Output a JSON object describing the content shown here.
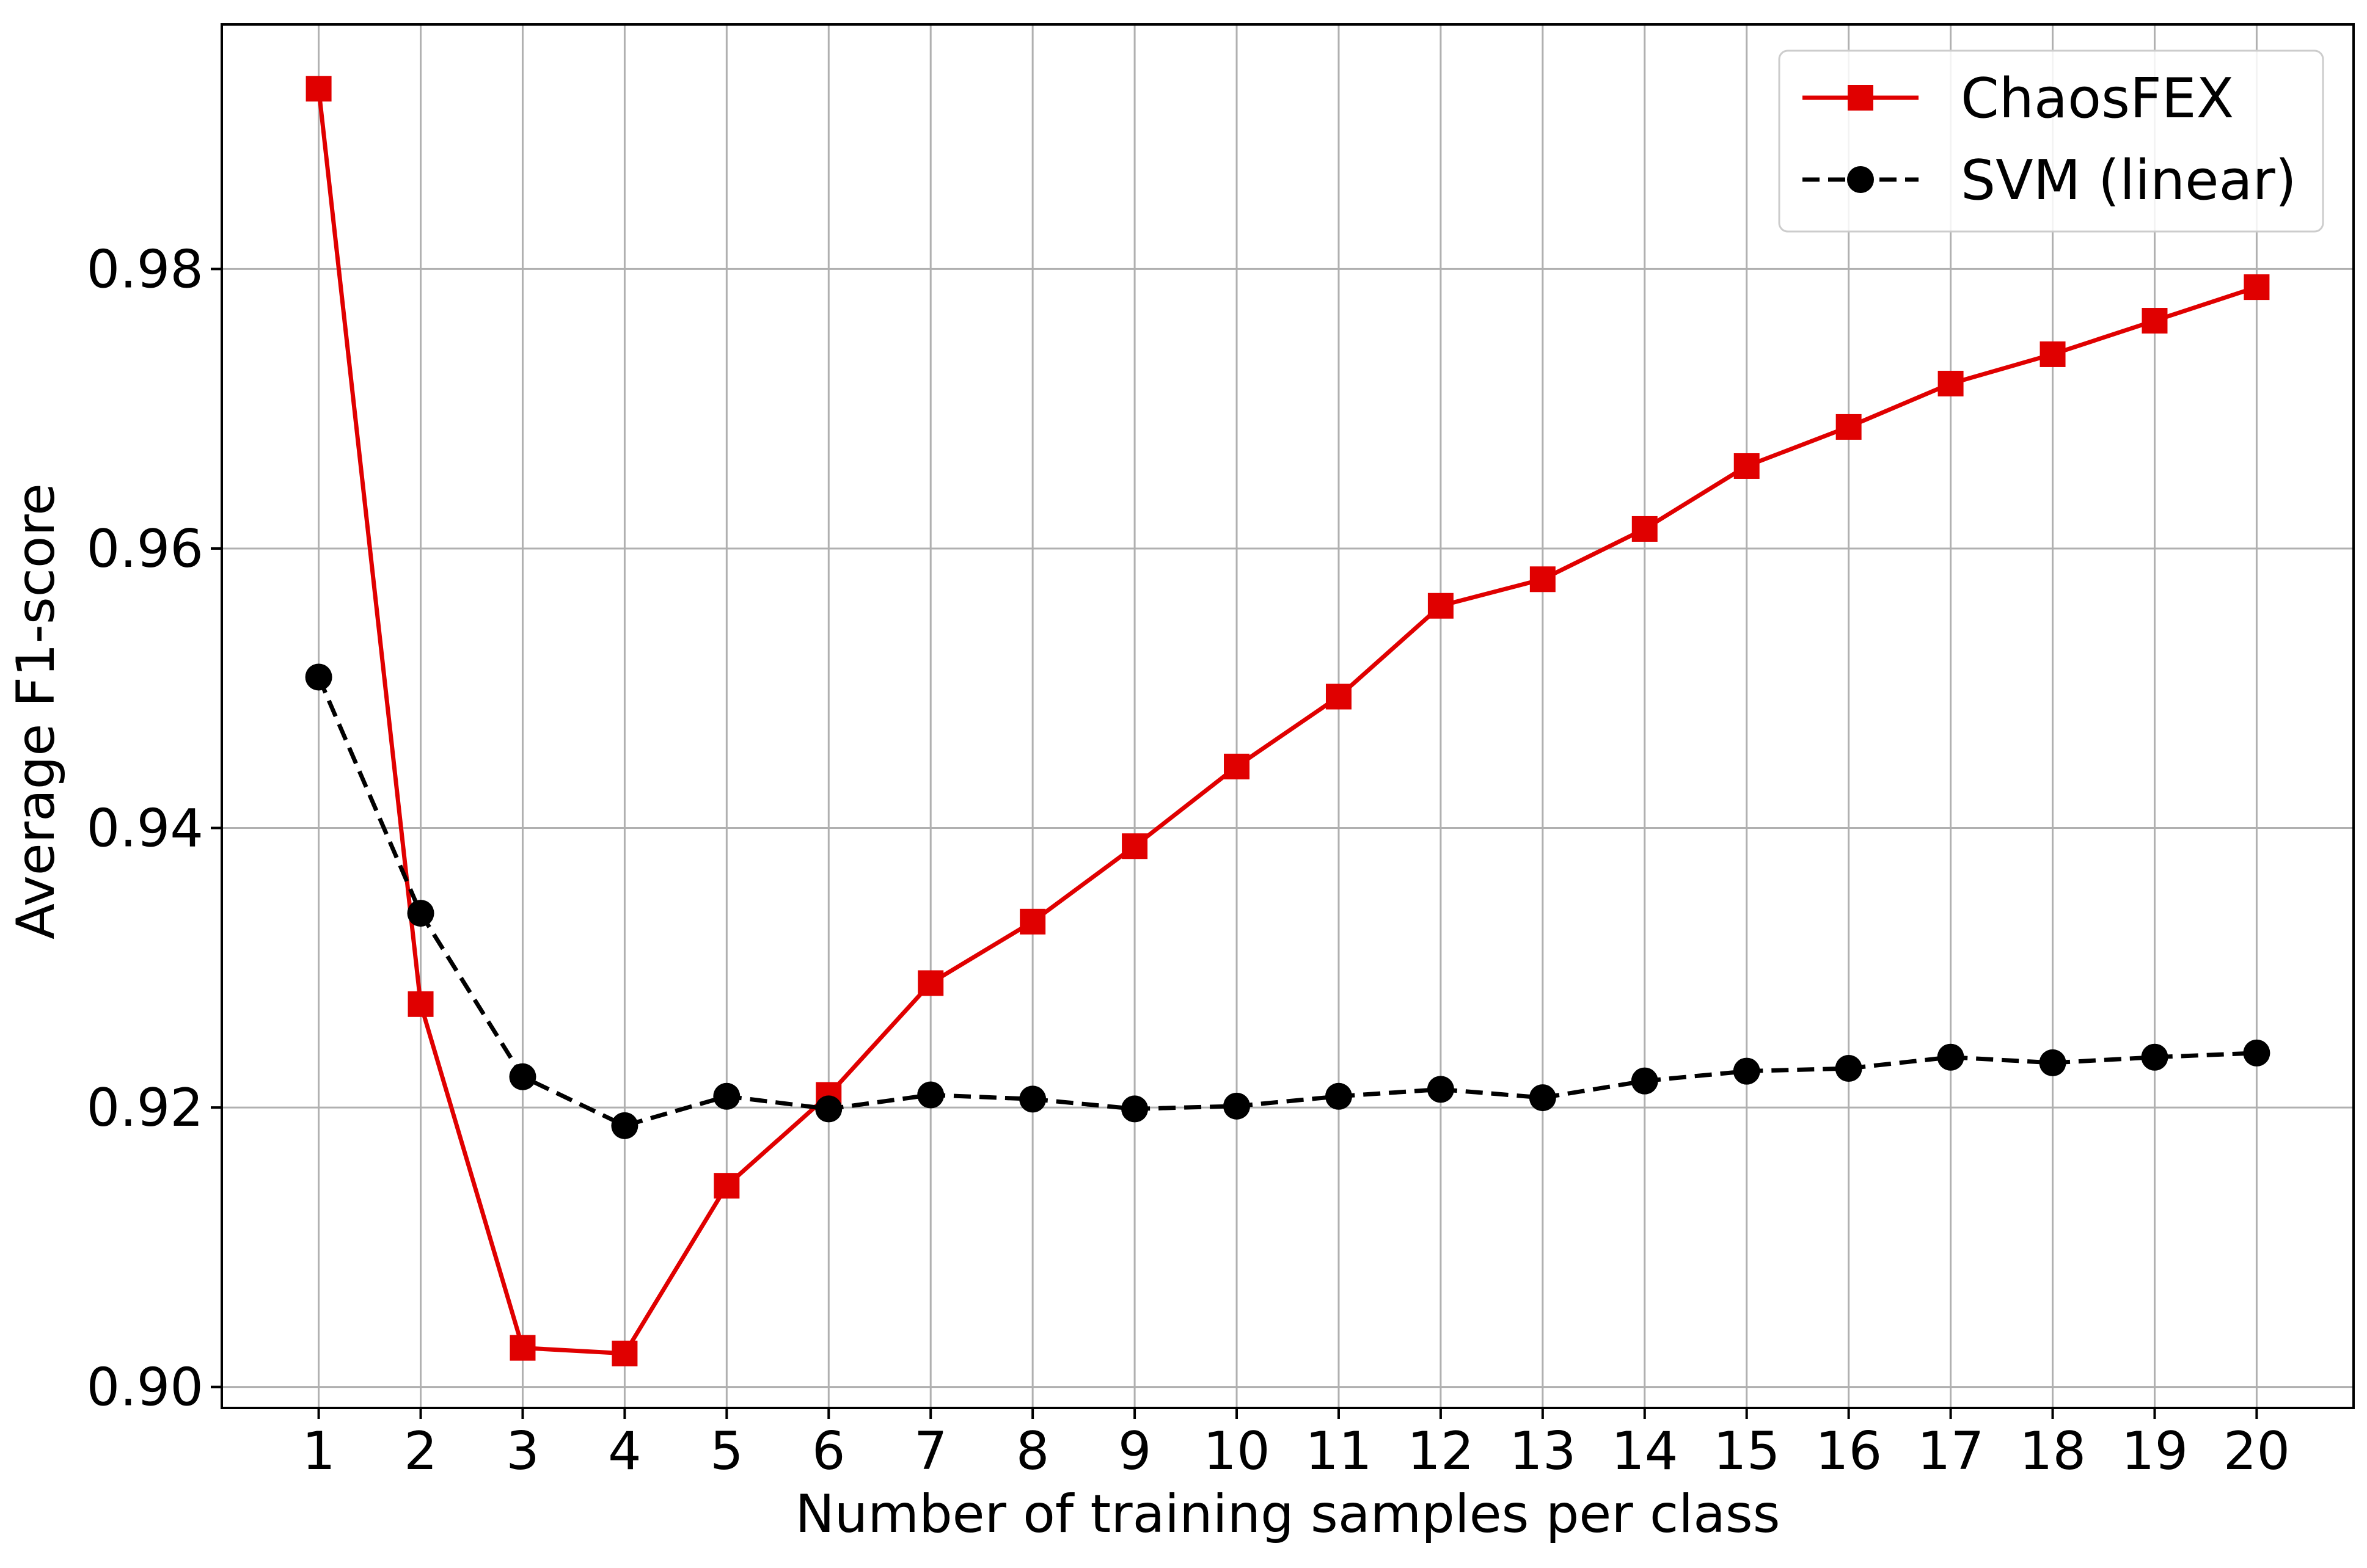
{
  "chart_data": {
    "type": "line",
    "title": "",
    "xlabel": "Number of training samples per class",
    "ylabel": "Average F1-score",
    "x": [
      1,
      2,
      3,
      4,
      5,
      6,
      7,
      8,
      9,
      10,
      11,
      12,
      13,
      14,
      15,
      16,
      17,
      18,
      19,
      20
    ],
    "xticks": [
      "1",
      "2",
      "3",
      "4",
      "5",
      "6",
      "7",
      "8",
      "9",
      "10",
      "11",
      "12",
      "13",
      "14",
      "15",
      "16",
      "17",
      "18",
      "19",
      "20"
    ],
    "yticks": [
      "0.90",
      "0.92",
      "0.94",
      "0.96",
      "0.98"
    ],
    "ytick_values": [
      0.9,
      0.92,
      0.94,
      0.96,
      0.98
    ],
    "xlim": [
      0.05,
      20.95
    ],
    "ylim": [
      0.8985,
      0.9975
    ],
    "grid": true,
    "legend_position": "top-right",
    "series": [
      {
        "name": "ChaosFEX",
        "color": "#e00000",
        "marker": "square",
        "linestyle": "solid",
        "values": [
          0.9929,
          0.9274,
          0.9028,
          0.9024,
          0.9144,
          0.9209,
          0.9289,
          0.9333,
          0.9387,
          0.9444,
          0.9494,
          0.9559,
          0.9578,
          0.9614,
          0.9659,
          0.9687,
          0.9718,
          0.9739,
          0.9763,
          0.9787
        ]
      },
      {
        "name": "SVM (linear)",
        "color": "#000000",
        "marker": "circle",
        "linestyle": "dashed",
        "values": [
          0.9508,
          0.9339,
          0.9222,
          0.9187,
          0.9208,
          0.9199,
          0.9209,
          0.9206,
          0.9199,
          0.9201,
          0.9208,
          0.9213,
          0.9207,
          0.9219,
          0.9226,
          0.9228,
          0.9236,
          0.9232,
          0.9236,
          0.9239
        ]
      }
    ]
  }
}
